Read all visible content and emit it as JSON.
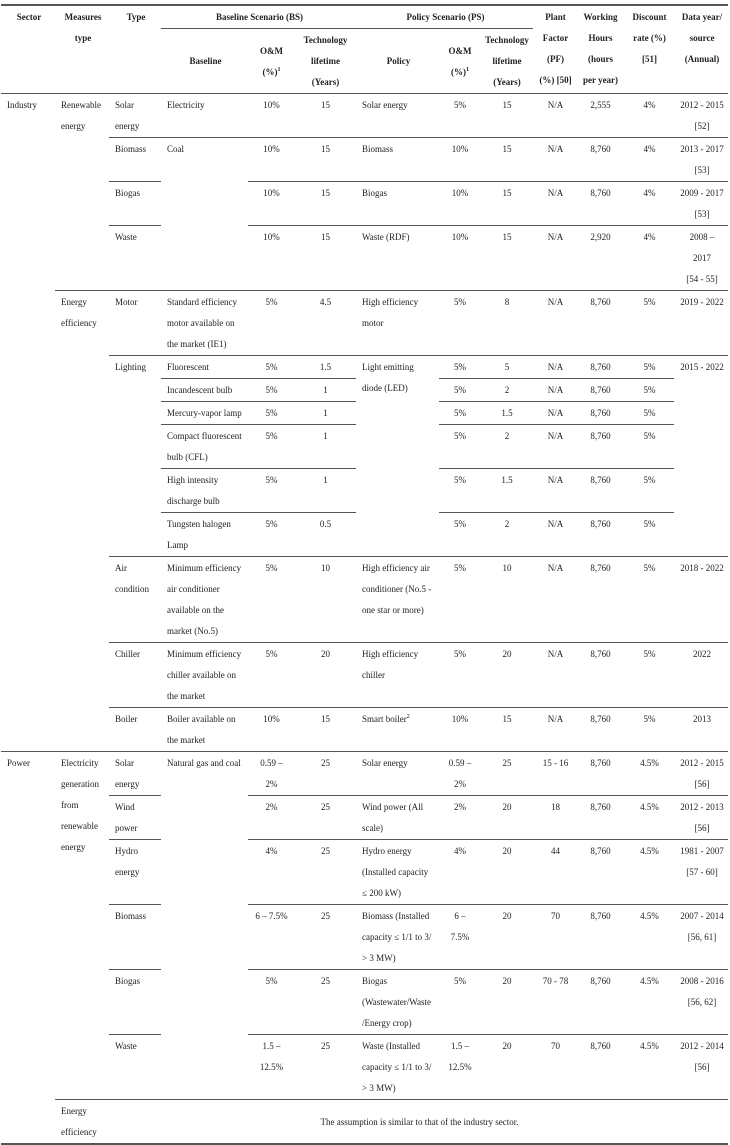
{
  "header": {
    "sector": "Sector",
    "measures_type": "Measures type",
    "type": "Type",
    "baseline_scenario": "Baseline Scenario (BS)",
    "policy_scenario": "Policy Scenario (PS)",
    "baseline": "Baseline",
    "om": "O&M (%)",
    "om_note": "1",
    "tech_lifetime": "Technology lifetime (Years)",
    "policy": "Policy",
    "plant_factor": "Plant Factor (PF) (%) [50]",
    "working_hours": "Working Hours (hours per year)",
    "discount_rate": "Discount rate (%) [51]",
    "data_year": "Data year/ source (Annual)"
  },
  "sectors": {
    "industry": "Industry",
    "power": "Power"
  },
  "measures": {
    "renewable": "Renewable energy",
    "efficiency": "Energy efficiency",
    "electricity": "Electricity generation from renewable energy",
    "power_efficiency": "Energy efficiency"
  },
  "power_efficiency_note": "The assumption is similar to that of the industry sector.",
  "rows": [
    {
      "type": "Solar energy",
      "baseline": "Electricity",
      "bs_om": "10%",
      "bs_life": "15",
      "policy": "Solar energy",
      "ps_om": "5%",
      "ps_life": "15",
      "pf": "N/A",
      "hours": "2,555",
      "discount": "4%",
      "year": "2012 - 2015",
      "ref": "[52]"
    },
    {
      "type": "Biomass",
      "baseline": "Coal",
      "bs_om": "10%",
      "bs_life": "15",
      "policy": "Biomass",
      "ps_om": "10%",
      "ps_life": "15",
      "pf": "N/A",
      "hours": "8,760",
      "discount": "4%",
      "year": "2013 - 2017",
      "ref": "[53]"
    },
    {
      "type": "Biogas",
      "bs_om": "10%",
      "bs_life": "15",
      "policy": "Biogas",
      "ps_om": "10%",
      "ps_life": "15",
      "pf": "N/A",
      "hours": "8,760",
      "discount": "4%",
      "year": "2009 - 2017",
      "ref": "[53]"
    },
    {
      "type": "Waste",
      "bs_om": "10%",
      "bs_life": "15",
      "policy": "Waste (RDF)",
      "ps_om": "10%",
      "ps_life": "15",
      "pf": "N/A",
      "hours": "2,920",
      "discount": "4%",
      "year": "2008 – 2017",
      "ref": "[54 - 55]"
    },
    {
      "type": "Motor",
      "baseline": "Standard efficiency motor available on the market (IE1)",
      "bs_om": "5%",
      "bs_life": "4.5",
      "policy": "High efficiency motor",
      "ps_om": "5%",
      "ps_life": "8",
      "pf": "N/A",
      "hours": "8,760",
      "discount": "5%",
      "year": "2019 - 2022"
    },
    {
      "type": "Lighting",
      "baseline": "Fluorescent",
      "bs_om": "5%",
      "bs_life": "1.5",
      "policy": "Light emitting diode (LED)",
      "ps_om": "5%",
      "ps_life": "5",
      "pf": "N/A",
      "hours": "8,760",
      "discount": "5%",
      "year": "2015 - 2022"
    },
    {
      "baseline": "Incandescent bulb",
      "bs_om": "5%",
      "bs_life": "1",
      "ps_om": "5%",
      "ps_life": "2",
      "pf": "N/A",
      "hours": "8,760",
      "discount": "5%"
    },
    {
      "baseline": "Mercury-vapor lamp",
      "bs_om": "5%",
      "bs_life": "1",
      "ps_om": "5%",
      "ps_life": "1.5",
      "pf": "N/A",
      "hours": "8,760",
      "discount": "5%"
    },
    {
      "baseline": "Compact fluorescent bulb (CFL)",
      "bs_om": "5%",
      "bs_life": "1",
      "ps_om": "5%",
      "ps_life": "2",
      "pf": "N/A",
      "hours": "8,760",
      "discount": "5%"
    },
    {
      "baseline": "High intensity discharge bulb",
      "bs_om": "5%",
      "bs_life": "1",
      "ps_om": "5%",
      "ps_life": "1.5",
      "pf": "N/A",
      "hours": "8,760",
      "discount": "5%"
    },
    {
      "baseline": "Tungsten halogen Lamp",
      "bs_om": "5%",
      "bs_life": "0.5",
      "ps_om": "5%",
      "ps_life": "2",
      "pf": "N/A",
      "hours": "8,760",
      "discount": "5%"
    },
    {
      "type": "Air condition",
      "baseline": "Minimum efficiency air conditioner available on the market (No.5)",
      "bs_om": "5%",
      "bs_life": "10",
      "policy": "High efficiency air conditioner (No.5 - one star or more)",
      "ps_om": "5%",
      "ps_life": "10",
      "pf": "N/A",
      "hours": "8,760",
      "discount": "5%",
      "year": "2018 - 2022"
    },
    {
      "type": "Chiller",
      "baseline": "Minimum efficiency chiller available on the market",
      "bs_om": "5%",
      "bs_life": "20",
      "policy": "High efficiency chiller",
      "ps_om": "5%",
      "ps_life": "20",
      "pf": "N/A",
      "hours": "8,760",
      "discount": "5%",
      "year": "2022"
    },
    {
      "type": "Boiler",
      "baseline": "Boiler available on the market",
      "bs_om": "10%",
      "bs_life": "15",
      "policy": "Smart boiler",
      "policy_note": "2",
      "ps_om": "10%",
      "ps_life": "15",
      "pf": "N/A",
      "hours": "8,760",
      "discount": "5%",
      "year": "2013"
    },
    {
      "type": "Solar energy",
      "baseline": "Natural gas and coal",
      "bs_om": "0.59 – 2%",
      "bs_life": "25",
      "policy": "Solar energy",
      "ps_om": "0.59 – 2%",
      "ps_life": "25",
      "pf": "15 - 16",
      "hours": "8,760",
      "discount": "4.5%",
      "year": "2012 - 2015",
      "ref": "[56]"
    },
    {
      "type": "Wind power",
      "bs_om": "2%",
      "bs_life": "25",
      "policy": "Wind power (All scale)",
      "ps_om": "2%",
      "ps_life": "20",
      "pf": "18",
      "hours": "8,760",
      "discount": "4.5%",
      "year": "2012 - 2013",
      "ref": "[56]"
    },
    {
      "type": "Hydro energy",
      "bs_om": "4%",
      "bs_life": "25",
      "policy": "Hydro energy (Installed capacity ≤ 200 kW)",
      "ps_om": "4%",
      "ps_life": "20",
      "pf": "44",
      "hours": "8,760",
      "discount": "4.5%",
      "year": "1981 - 2007",
      "ref": "[57 - 60]"
    },
    {
      "type": "Biomass",
      "bs_om": "6 – 7.5%",
      "bs_life": "25",
      "policy": "Biomass (Installed capacity ≤ 1/1 to 3/ > 3 MW)",
      "ps_om": "6 – 7.5%",
      "ps_life": "20",
      "pf": "70",
      "hours": "8,760",
      "discount": "4.5%",
      "year": "2007 - 2014",
      "ref": "[56, 61]"
    },
    {
      "type": "Biogas",
      "bs_om": "5%",
      "bs_life": "25",
      "policy": "Biogas (Wastewater/Waste /Energy crop)",
      "ps_om": "5%",
      "ps_life": "20",
      "pf": "70 - 78",
      "hours": "8,760",
      "discount": "4.5%",
      "year": "2008 - 2016",
      "ref": "[56, 62]"
    },
    {
      "type": "Waste",
      "bs_om": "1.5 – 12.5%",
      "bs_life": "25",
      "policy": "Waste (Installed capacity ≤ 1/1 to 3/ > 3 MW)",
      "ps_om": "1.5 – 12.5%",
      "ps_life": "20",
      "pf": "70",
      "hours": "8,760",
      "discount": "4.5%",
      "year": "2012 - 2014",
      "ref": "[56]"
    }
  ]
}
